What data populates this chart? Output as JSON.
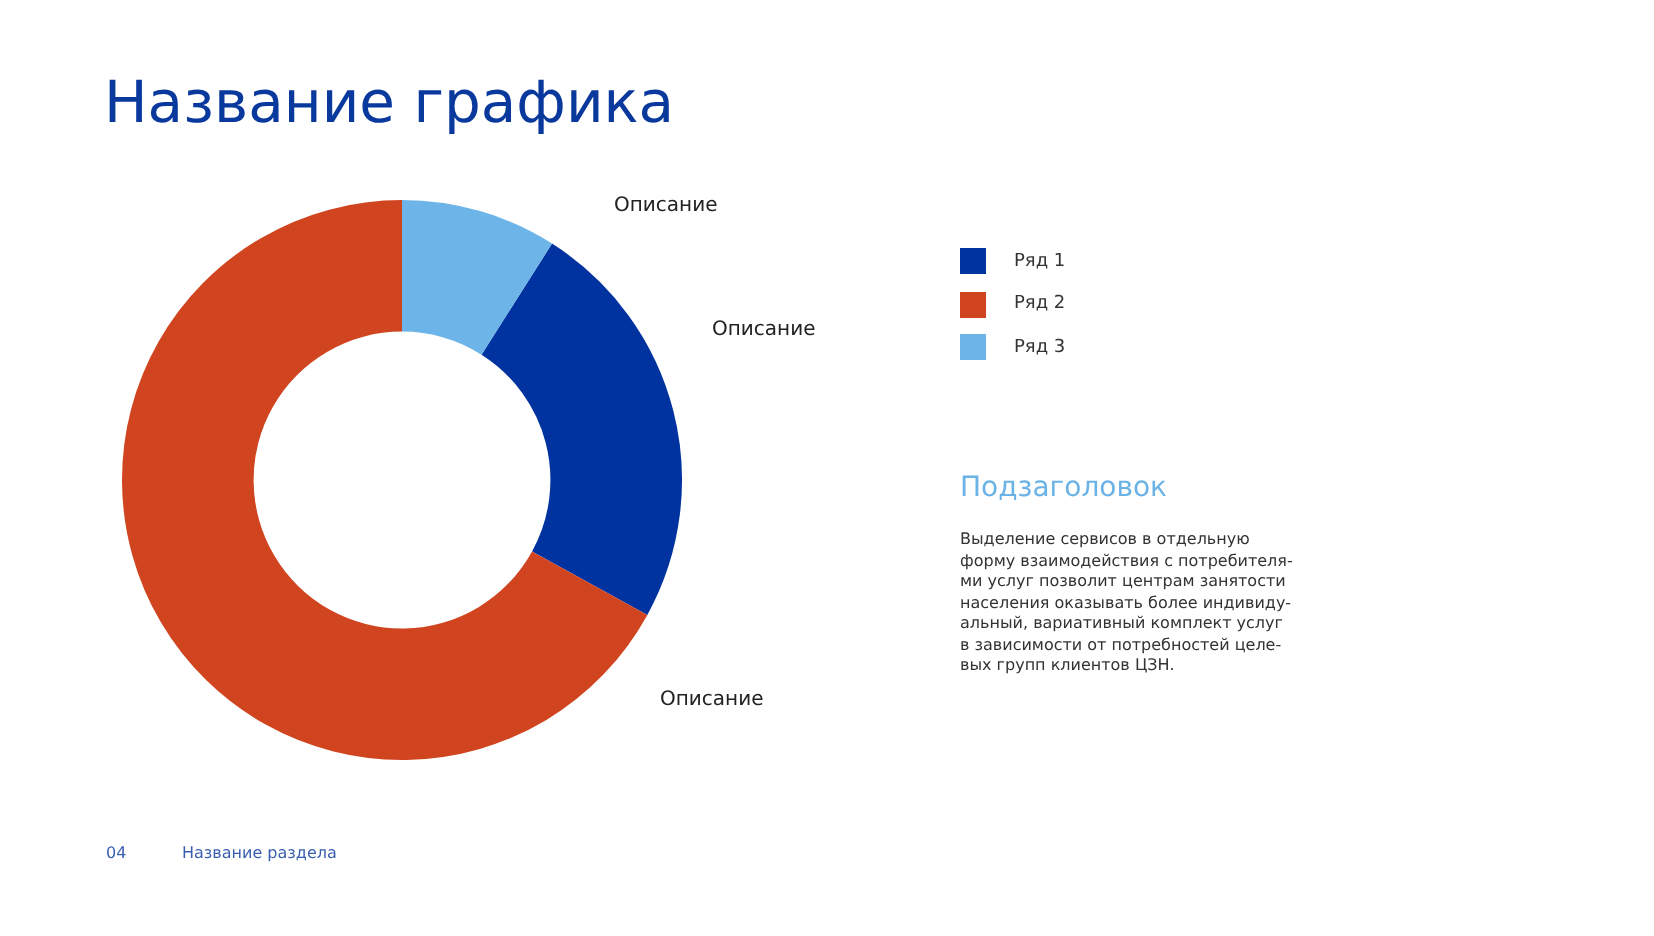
{
  "chart_data": {
    "type": "donut",
    "title": "Название графика",
    "subtitle": "Подзаголовок",
    "categories": [
      "Ряд 1",
      "Ряд 2",
      "Ряд 3"
    ],
    "values": [
      24,
      67,
      9
    ],
    "colors": [
      "#0033a0",
      "#d0451f",
      "#6db4e8"
    ],
    "legend": "right",
    "annotations": [
      "Описание",
      "Описание",
      "Описание",
      "Выделение сервисов в отдельную\nформу взаимодействия с потребителя-\nми услуг позволит центрам занятости\nнаселения оказывать более индивиду-\nальный, вариативный комплект услуг\nв зависимости от потребностей целе-\nвых групп клиентов ЦЗН.",
      "04",
      "Название раздела"
    ]
  }
}
